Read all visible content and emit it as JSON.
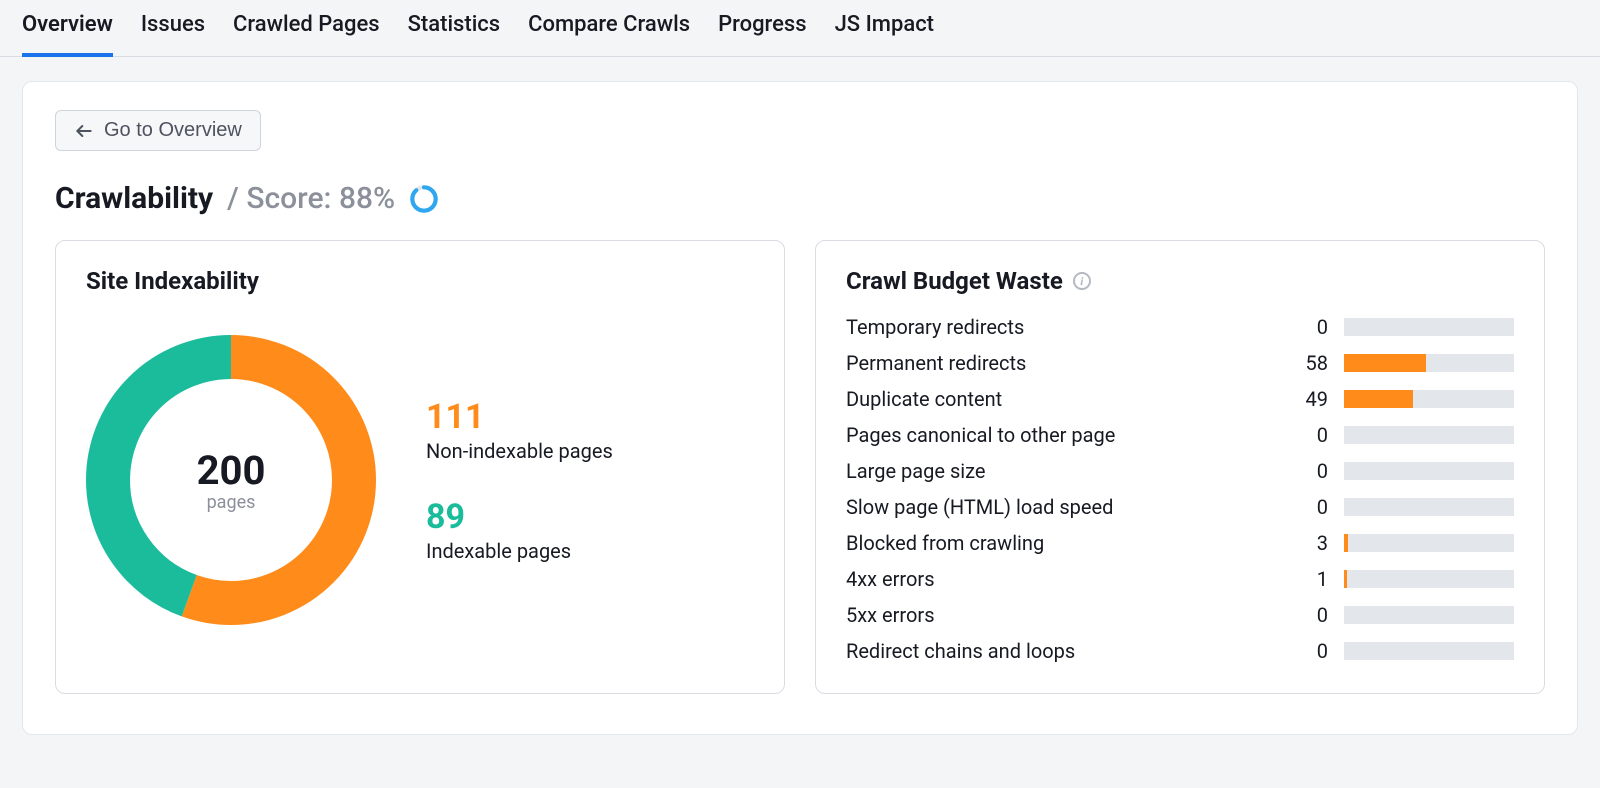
{
  "tabs": [
    {
      "label": "Overview",
      "active": true
    },
    {
      "label": "Issues",
      "active": false
    },
    {
      "label": "Crawled Pages",
      "active": false
    },
    {
      "label": "Statistics",
      "active": false
    },
    {
      "label": "Compare Crawls",
      "active": false
    },
    {
      "label": "Progress",
      "active": false
    },
    {
      "label": "JS Impact",
      "active": false
    }
  ],
  "back_button": {
    "label": "Go to Overview"
  },
  "title": {
    "main": "Crawlability",
    "score_prefix": "/ Score:",
    "score_value": 88,
    "score_suffix": "%",
    "ring_fill_color": "#2fa7f0",
    "ring_bg_color": "#e3e6ea"
  },
  "indexability": {
    "title": "Site Indexability",
    "total": 200,
    "unit": "pages",
    "donut": {
      "type": "donut",
      "stroke_width": 44,
      "bg_color": "#ffffff",
      "slices": [
        {
          "key": "non_indexable",
          "value": 111,
          "color": "#ff8c1a",
          "label": "Non-indexable pages"
        },
        {
          "key": "indexable",
          "value": 89,
          "color": "#1abc9c",
          "label": "Indexable pages"
        }
      ]
    }
  },
  "crawl_budget": {
    "title": "Crawl Budget Waste",
    "bar_max": 120,
    "bar_bg_color": "#e3e6ea",
    "bar_fill_color": "#ff8c1a",
    "rows": [
      {
        "label": "Temporary redirects",
        "value": 0
      },
      {
        "label": "Permanent redirects",
        "value": 58
      },
      {
        "label": "Duplicate content",
        "value": 49
      },
      {
        "label": "Pages canonical to other page",
        "value": 0
      },
      {
        "label": "Large page size",
        "value": 0
      },
      {
        "label": "Slow page (HTML) load speed",
        "value": 0
      },
      {
        "label": "Blocked from crawling",
        "value": 3
      },
      {
        "label": "4xx errors",
        "value": 1
      },
      {
        "label": "5xx errors",
        "value": 0
      },
      {
        "label": "Redirect chains and loops",
        "value": 0
      }
    ]
  }
}
